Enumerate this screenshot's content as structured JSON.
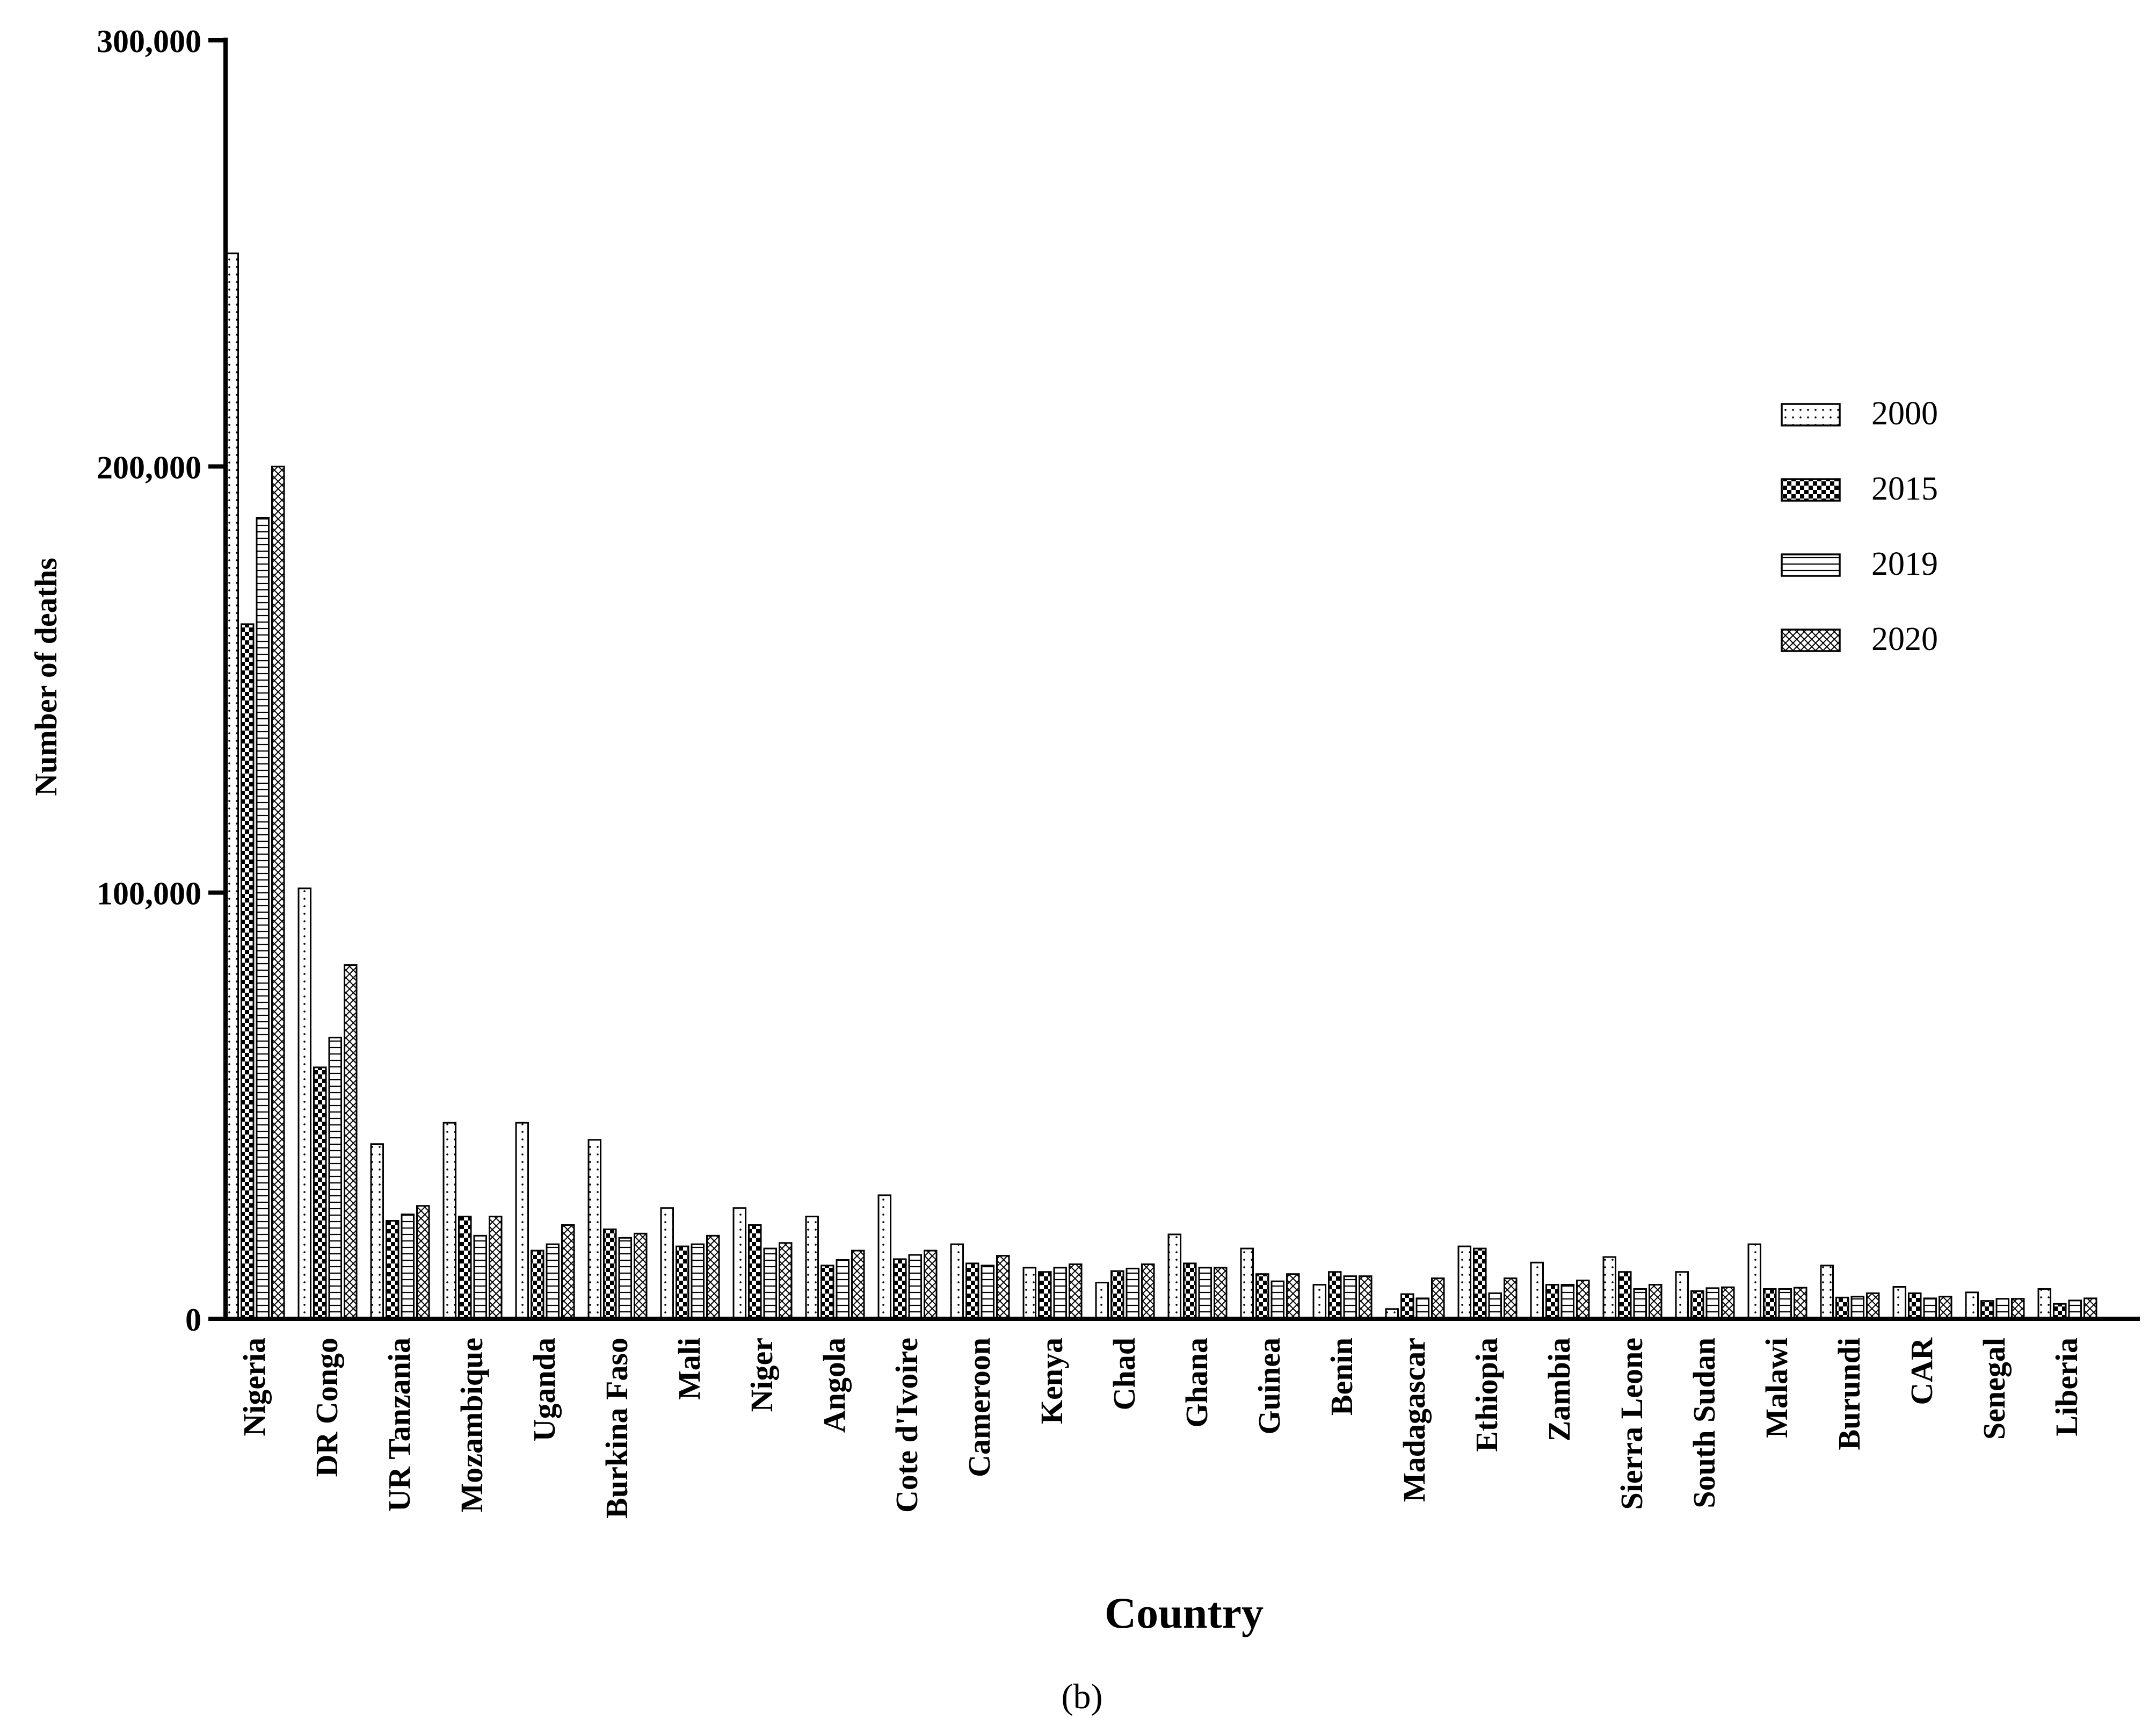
{
  "figure_label": "(b)",
  "chart_data": {
    "type": "bar",
    "title": "",
    "xlabel": "Country",
    "ylabel": "Number of deaths",
    "ylim": [
      0,
      300000
    ],
    "yticks": [
      0,
      100000,
      200000,
      300000
    ],
    "ytick_labels": [
      "0",
      "100,000",
      "200,000",
      "300,000"
    ],
    "grid": false,
    "legend_position": "right",
    "categories": [
      "Nigeria",
      "DR Congo",
      "UR Tanzania",
      "Mozambique",
      "Uganda",
      "Burkina Faso",
      "Mali",
      "Niger",
      "Angola",
      "Cote d'Ivoire",
      "Cameroon",
      "Kenya",
      "Chad",
      "Ghana",
      "Guinea",
      "Benin",
      "Madagascar",
      "Ethiopia",
      "Zambia",
      "Sierra Leone",
      "South Sudan",
      "Malawi",
      "Burundi",
      "CAR",
      "Senegal",
      "Liberia"
    ],
    "series": [
      {
        "name": "2000",
        "pattern": "dots",
        "values": [
          250000,
          101000,
          41000,
          46000,
          46000,
          42000,
          26000,
          26000,
          24000,
          29000,
          17500,
          12000,
          8500,
          19800,
          16500,
          8000,
          2300,
          17000,
          13200,
          14500,
          11000,
          17500,
          12500,
          7500,
          6200,
          7000
        ]
      },
      {
        "name": "2015",
        "pattern": "checker",
        "values": [
          163000,
          59000,
          23000,
          24000,
          16000,
          21000,
          17000,
          22000,
          12500,
          14000,
          13000,
          11000,
          11200,
          13000,
          10500,
          11000,
          5800,
          16500,
          8000,
          11000,
          6500,
          7000,
          5000,
          6000,
          4200,
          3500
        ]
      },
      {
        "name": "2019",
        "pattern": "horizontal-lines",
        "values": [
          188000,
          66000,
          24500,
          19500,
          17500,
          19000,
          17500,
          16500,
          13800,
          15000,
          12500,
          12000,
          11800,
          12000,
          8800,
          10000,
          4800,
          6000,
          8000,
          7000,
          7200,
          7000,
          5200,
          4800,
          4700,
          4300
        ]
      },
      {
        "name": "2020",
        "pattern": "crosshatch",
        "values": [
          200000,
          83000,
          26500,
          24000,
          22000,
          20000,
          19500,
          17800,
          16000,
          16000,
          14800,
          12800,
          12800,
          12000,
          10500,
          10000,
          9500,
          9500,
          9000,
          8000,
          7400,
          7300,
          6000,
          5200,
          4700,
          4800
        ]
      }
    ]
  }
}
